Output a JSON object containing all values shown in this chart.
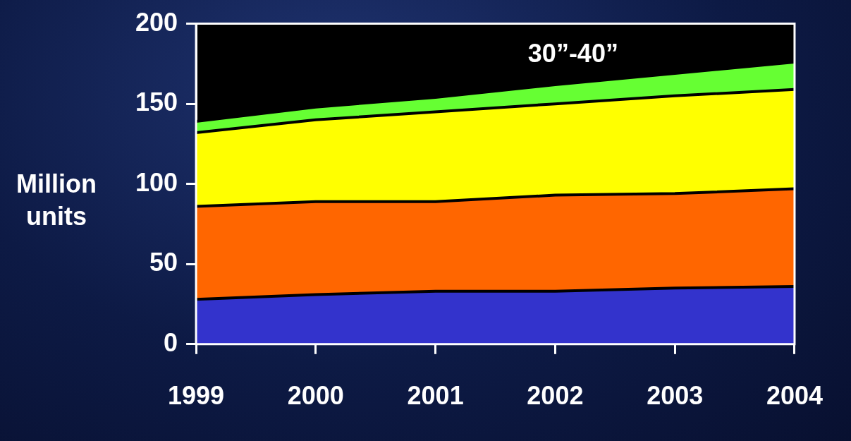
{
  "chart_data": {
    "type": "area",
    "stacked": true,
    "ylabel": "Million units",
    "x": [
      1999,
      2000,
      2001,
      2002,
      2003,
      2004
    ],
    "xlim": [
      1999,
      2004
    ],
    "xticks": [
      1999,
      2000,
      2001,
      2002,
      2003,
      2004
    ],
    "ylim": [
      0,
      200
    ],
    "yticks": [
      0,
      50,
      100,
      150,
      200
    ],
    "grid": false,
    "legend": false,
    "series": [
      {
        "color": "#3333cc",
        "values": [
          28,
          31,
          33,
          33,
          35,
          36
        ]
      },
      {
        "color": "#ff6600",
        "values": [
          58,
          58,
          56,
          60,
          59,
          61
        ]
      },
      {
        "color": "#ffff00",
        "values": [
          46,
          51,
          56,
          57,
          61,
          62
        ]
      },
      {
        "color": "#66ff33",
        "values": [
          7,
          8,
          9,
          12,
          14,
          17
        ]
      }
    ],
    "annotations": [
      "30”-40”"
    ]
  }
}
